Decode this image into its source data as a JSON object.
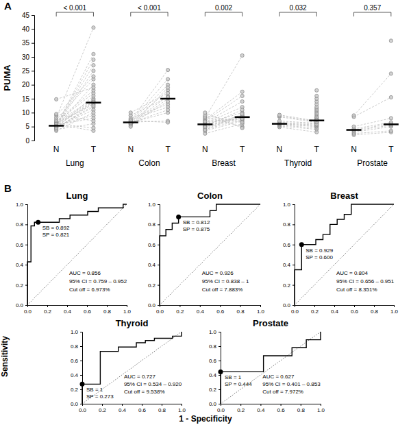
{
  "roc_axes": {
    "xlabel": "1 - Specificity",
    "ylabel": "Sensitivity"
  },
  "chart_data": [
    {
      "type": "paired_dot",
      "panel": "A",
      "ylabel": "PUMA",
      "ylim": [
        0,
        45
      ],
      "yticks": [
        0,
        5,
        10,
        15,
        20,
        25,
        30,
        35,
        40,
        45
      ],
      "color": "#7f7f7f",
      "groups": [
        {
          "name": "Lung",
          "categories": [
            "N",
            "T"
          ],
          "p_value": "< 0.001",
          "medians": [
            5.3,
            13.6
          ],
          "series": [
            {
              "values": [
                4.2,
                4.5,
                4.7,
                4.8,
                5,
                5.1,
                5.2,
                5.3,
                5.3,
                5.4,
                5.5,
                5.6,
                5.8,
                6,
                6.2,
                6.4,
                6.6,
                7,
                7.5,
                3.5,
                4,
                4.6,
                5.9,
                8.2,
                9,
                9.5,
                14.8,
                5.2
              ]
            },
            {
              "values": [
                13.5,
                16,
                12,
                11,
                20,
                25,
                27,
                29,
                31,
                14,
                9,
                8,
                3.5,
                4.5,
                13,
                15,
                17,
                18,
                22,
                10,
                6,
                12.5,
                14.5,
                40.5,
                23,
                7,
                19,
                13.8
              ]
            }
          ]
        },
        {
          "name": "Colon",
          "categories": [
            "N",
            "T"
          ],
          "p_value": "< 0.001",
          "medians": [
            6.5,
            15
          ],
          "series": [
            {
              "values": [
                5.5,
                6,
                6.2,
                6.5,
                6.8,
                7,
                7.5,
                8,
                5.8,
                6.4,
                6.6,
                7.2,
                9,
                10,
                5,
                6.3
              ]
            },
            {
              "values": [
                15,
                16,
                18,
                20,
                22,
                25.3,
                12,
                13,
                14,
                10,
                7,
                6.5,
                15.5,
                17,
                19,
                11
              ]
            }
          ]
        },
        {
          "name": "Breast",
          "categories": [
            "N",
            "T"
          ],
          "p_value": "0.002",
          "medians": [
            5.8,
            8.4
          ],
          "series": [
            {
              "values": [
                2.5,
                3.5,
                4,
                4.5,
                5,
                5.5,
                5.8,
                6,
                6.2,
                6.5,
                7,
                7.5,
                8,
                8.5,
                9,
                5.2,
                4.8,
                6.8,
                10,
                3.8
              ]
            },
            {
              "values": [
                6,
                7,
                7.5,
                8,
                8.3,
                8.5,
                9,
                10,
                12,
                14,
                16,
                17.5,
                30.5,
                5,
                6.5,
                11,
                8.8,
                7.8,
                4.5,
                9.5
              ]
            }
          ]
        },
        {
          "name": "Thyroid",
          "categories": [
            "N",
            "T"
          ],
          "p_value": "0.032",
          "medians": [
            6,
            7.2
          ],
          "series": [
            {
              "values": [
                4.8,
                5.2,
                5.5,
                5.8,
                6,
                6.2,
                6.5,
                7,
                8.5,
                8.8,
                9.2
              ]
            },
            {
              "values": [
                3,
                4,
                4.5,
                5,
                5.3,
                5.6,
                6,
                6.2,
                6.5,
                6.8,
                7,
                7,
                7.2,
                7.5,
                7.8,
                8,
                8.2,
                8.5,
                9,
                9.5,
                10,
                10.5,
                11,
                11.5,
                12,
                13,
                14,
                15,
                16,
                18,
                5.8,
                6.6,
                7.4
              ]
            }
          ]
        },
        {
          "name": "Prostate",
          "categories": [
            "N",
            "T"
          ],
          "p_value": "0.357",
          "medians": [
            3.8,
            5.8
          ],
          "series": [
            {
              "values": [
                2,
                2.5,
                3,
                3.5,
                3.8,
                4.2,
                5,
                8.5,
                9
              ]
            },
            {
              "values": [
                3,
                3.5,
                5,
                5.5,
                6,
                6.5,
                8,
                15.5,
                24,
                35.8
              ]
            }
          ]
        }
      ]
    },
    {
      "type": "line",
      "panel": "B",
      "title": "Lung",
      "color": "#000000",
      "x": [
        0,
        0,
        0.036,
        0.036,
        0.071,
        0.071,
        0.108,
        0.321,
        0.321,
        0.429,
        0.429,
        0.607,
        0.607,
        0.714,
        0.714,
        0.964,
        0.964,
        1
      ],
      "values": [
        0,
        0.429,
        0.429,
        0.786,
        0.786,
        0.821,
        0.821,
        0.821,
        0.857,
        0.857,
        0.893,
        0.893,
        0.929,
        0.929,
        0.964,
        0.964,
        1,
        1
      ],
      "cutoff_point": {
        "x": 0.108,
        "y": 0.821
      },
      "annotations": [
        "SB = 0.892",
        "SP = 0.821",
        "AUC = 0.856",
        "95% CI = 0.759 – 0.952",
        "Cut off = 6.973%"
      ],
      "xlim": [
        0,
        1
      ],
      "ylim": [
        0,
        1
      ],
      "xticks": [
        {
          "value": 0,
          "label": "0.0"
        },
        {
          "value": 0.2,
          "label": "0.2"
        },
        {
          "value": 0.4,
          "label": "0.4"
        },
        {
          "value": 0.6,
          "label": "0.6"
        },
        {
          "value": 0.8,
          "label": "0.8"
        },
        {
          "value": 1,
          "label": "1.0"
        }
      ],
      "yticks": [
        {
          "value": 0,
          "label": "0.0"
        },
        {
          "value": 0.2,
          "label": "0.2"
        },
        {
          "value": 0.4,
          "label": "0.4"
        },
        {
          "value": 0.6,
          "label": "0.6"
        },
        {
          "value": 0.8,
          "label": "0.8"
        },
        {
          "value": 1,
          "label": "1.0"
        }
      ]
    },
    {
      "type": "line",
      "title": "Colon",
      "color": "#000000",
      "x": [
        0,
        0,
        0.0625,
        0.0625,
        0.125,
        0.125,
        0.188,
        0.188,
        0.5,
        0.5,
        0.5625,
        0.5625,
        1
      ],
      "values": [
        0,
        0.6875,
        0.6875,
        0.75,
        0.75,
        0.8125,
        0.8125,
        0.875,
        0.875,
        0.9375,
        0.9375,
        1,
        1
      ],
      "cutoff_point": {
        "x": 0.188,
        "y": 0.875
      },
      "annotations": [
        "SB = 0.812",
        "SP = 0.875",
        "AUC = 0.926",
        "95% CI = 0.838 – 1",
        "Cut off = 7.883%"
      ],
      "xlim": [
        0,
        1
      ],
      "ylim": [
        0,
        1
      ],
      "xticks": [
        {
          "value": 0,
          "label": "0.0"
        },
        {
          "value": 0.2,
          "label": "0.2"
        },
        {
          "value": 0.4,
          "label": "0.4"
        },
        {
          "value": 0.6,
          "label": "0.6"
        },
        {
          "value": 0.8,
          "label": "0.8"
        },
        {
          "value": 1,
          "label": "1.0"
        }
      ],
      "yticks": [
        {
          "value": 0,
          "label": "0.0"
        },
        {
          "value": 0.2,
          "label": "0.2"
        },
        {
          "value": 0.4,
          "label": "0.4"
        },
        {
          "value": 0.6,
          "label": "0.6"
        },
        {
          "value": 0.8,
          "label": "0.8"
        },
        {
          "value": 1,
          "label": "1.0"
        }
      ]
    },
    {
      "type": "line",
      "title": "Breast",
      "color": "#000000",
      "x": [
        0,
        0,
        0.071,
        0.071,
        0.214,
        0.214,
        0.286,
        0.286,
        0.357,
        0.357,
        0.429,
        0.429,
        0.5,
        0.5,
        0.571,
        0.571,
        1
      ],
      "values": [
        0,
        0.35,
        0.35,
        0.6,
        0.6,
        0.65,
        0.65,
        0.7,
        0.7,
        0.8,
        0.8,
        0.85,
        0.85,
        0.9,
        0.9,
        1,
        1
      ],
      "cutoff_point": {
        "x": 0.071,
        "y": 0.6
      },
      "annotations": [
        "SB = 0.929",
        "SP = 0.600",
        "AUC = 0.804",
        "95% CI = 0.656 – 0.951",
        "Cut off = 8.351%"
      ],
      "xlim": [
        0,
        1
      ],
      "ylim": [
        0,
        1
      ],
      "xticks": [
        {
          "value": 0,
          "label": "0.0"
        },
        {
          "value": 0.2,
          "label": "0.2"
        },
        {
          "value": 0.4,
          "label": "0.4"
        },
        {
          "value": 0.6,
          "label": "0.6"
        },
        {
          "value": 0.8,
          "label": "0.8"
        },
        {
          "value": 1,
          "label": "1.0"
        }
      ],
      "yticks": [
        {
          "value": 0,
          "label": "0.0"
        },
        {
          "value": 0.2,
          "label": "0.2"
        },
        {
          "value": 0.4,
          "label": "0.4"
        },
        {
          "value": 0.6,
          "label": "0.6"
        },
        {
          "value": 0.8,
          "label": "0.8"
        },
        {
          "value": 1,
          "label": "1.0"
        }
      ]
    },
    {
      "type": "line",
      "title": "Thyroid",
      "color": "#000000",
      "x": [
        0,
        0,
        0.182,
        0.182,
        0.364,
        0.364,
        0.545,
        0.545,
        0.636,
        0.636,
        0.727,
        0.727,
        0.909,
        0.909,
        1,
        1
      ],
      "values": [
        0,
        0.273,
        0.273,
        0.727,
        0.727,
        0.788,
        0.788,
        0.848,
        0.848,
        0.879,
        0.879,
        0.909,
        0.909,
        0.939,
        0.939,
        1
      ],
      "cutoff_point": {
        "x": 0,
        "y": 0.273
      },
      "annotations": [
        "SB = 1",
        "SP = 0.273",
        "AUC = 0.727",
        "95% CI = 0.534 – 0.920",
        "Cut off = 9.538%"
      ],
      "xlim": [
        0,
        1
      ],
      "ylim": [
        0,
        1
      ],
      "xticks": [
        {
          "value": 0,
          "label": "0.0"
        },
        {
          "value": 0.2,
          "label": "0.2"
        },
        {
          "value": 0.4,
          "label": "0.4"
        },
        {
          "value": 0.6,
          "label": "0.6"
        },
        {
          "value": 0.8,
          "label": "0.8"
        },
        {
          "value": 1,
          "label": "1.0"
        }
      ],
      "yticks": [
        {
          "value": 0,
          "label": "0.0"
        },
        {
          "value": 0.2,
          "label": "0.2"
        },
        {
          "value": 0.4,
          "label": "0.4"
        },
        {
          "value": 0.6,
          "label": "0.6"
        },
        {
          "value": 0.8,
          "label": "0.8"
        },
        {
          "value": 1,
          "label": "1.0"
        }
      ]
    },
    {
      "type": "line",
      "title": "Prostate",
      "color": "#000000",
      "x": [
        0,
        0,
        0.429,
        0.429,
        0.714,
        0.714,
        0.857,
        0.857,
        1,
        1
      ],
      "values": [
        0,
        0.444,
        0.444,
        0.667,
        0.667,
        0.778,
        0.778,
        0.889,
        0.889,
        1
      ],
      "cutoff_point": {
        "x": 0,
        "y": 0.444
      },
      "annotations": [
        "SB = 1",
        "SP = 0.444",
        "AUC = 0.627",
        "95% CI = 0.401 – 0.853",
        "Cut off = 7.972%"
      ],
      "xlim": [
        0,
        1
      ],
      "ylim": [
        0,
        1
      ],
      "xticks": [
        {
          "value": 0,
          "label": "0.0"
        },
        {
          "value": 0.2,
          "label": "0.2"
        },
        {
          "value": 0.4,
          "label": "0.4"
        },
        {
          "value": 0.6,
          "label": "0.6"
        },
        {
          "value": 0.8,
          "label": "0.8"
        },
        {
          "value": 1,
          "label": "1.0"
        }
      ],
      "yticks": [
        {
          "value": 0,
          "label": "0.0"
        },
        {
          "value": 0.2,
          "label": "0.2"
        },
        {
          "value": 0.4,
          "label": "0.4"
        },
        {
          "value": 0.6,
          "label": "0.6"
        },
        {
          "value": 0.8,
          "label": "0.8"
        },
        {
          "value": 1,
          "label": "1.0"
        }
      ]
    }
  ]
}
